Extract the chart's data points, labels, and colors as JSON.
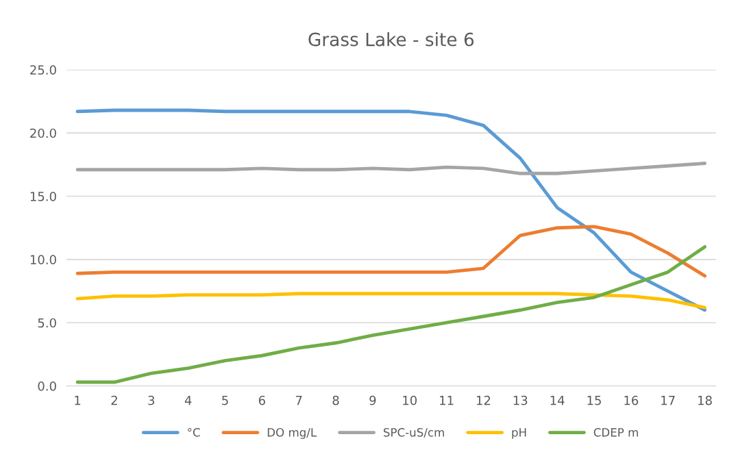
{
  "chart_data": {
    "type": "line",
    "title": "Grass Lake - site 6",
    "categories": [
      "1",
      "2",
      "3",
      "4",
      "5",
      "6",
      "7",
      "8",
      "9",
      "10",
      "11",
      "12",
      "13",
      "14",
      "15",
      "16",
      "17",
      "18"
    ],
    "series": [
      {
        "name": "°C",
        "color": "#5b9bd5",
        "values": [
          21.7,
          21.8,
          21.8,
          21.8,
          21.7,
          21.7,
          21.7,
          21.7,
          21.7,
          21.7,
          21.4,
          20.6,
          18.0,
          14.1,
          12.1,
          9.0,
          7.5,
          6.0
        ]
      },
      {
        "name": "DO mg/L",
        "color": "#ed7d31",
        "values": [
          8.9,
          9.0,
          9.0,
          9.0,
          9.0,
          9.0,
          9.0,
          9.0,
          9.0,
          9.0,
          9.0,
          9.3,
          11.9,
          12.5,
          12.6,
          12.0,
          10.5,
          8.7
        ]
      },
      {
        "name": "SPC-uS/cm",
        "color": "#a5a5a5",
        "values": [
          17.1,
          17.1,
          17.1,
          17.1,
          17.1,
          17.2,
          17.1,
          17.1,
          17.2,
          17.1,
          17.3,
          17.2,
          16.8,
          16.8,
          17.0,
          17.2,
          17.4,
          17.6
        ]
      },
      {
        "name": "pH",
        "color": "#ffc000",
        "values": [
          6.9,
          7.1,
          7.1,
          7.2,
          7.2,
          7.2,
          7.3,
          7.3,
          7.3,
          7.3,
          7.3,
          7.3,
          7.3,
          7.3,
          7.2,
          7.1,
          6.8,
          6.2
        ]
      },
      {
        "name": "CDEP m",
        "color": "#70ad47",
        "values": [
          0.3,
          0.3,
          1.0,
          1.4,
          2.0,
          2.4,
          3.0,
          3.4,
          4.0,
          4.5,
          5.0,
          5.5,
          6.0,
          6.6,
          7.0,
          8.0,
          9.0,
          11.0
        ]
      }
    ],
    "ylim": [
      0,
      25
    ],
    "yticks": [
      {
        "value": 0,
        "label": "0.0"
      },
      {
        "value": 5,
        "label": "5.0"
      },
      {
        "value": 10,
        "label": "10.0"
      },
      {
        "value": 15,
        "label": "15.0"
      },
      {
        "value": 20,
        "label": "20.0"
      },
      {
        "value": 25,
        "label": "25.0"
      }
    ],
    "grid": "y",
    "legend": "bottom",
    "marker": "none",
    "line_style": "solid"
  }
}
